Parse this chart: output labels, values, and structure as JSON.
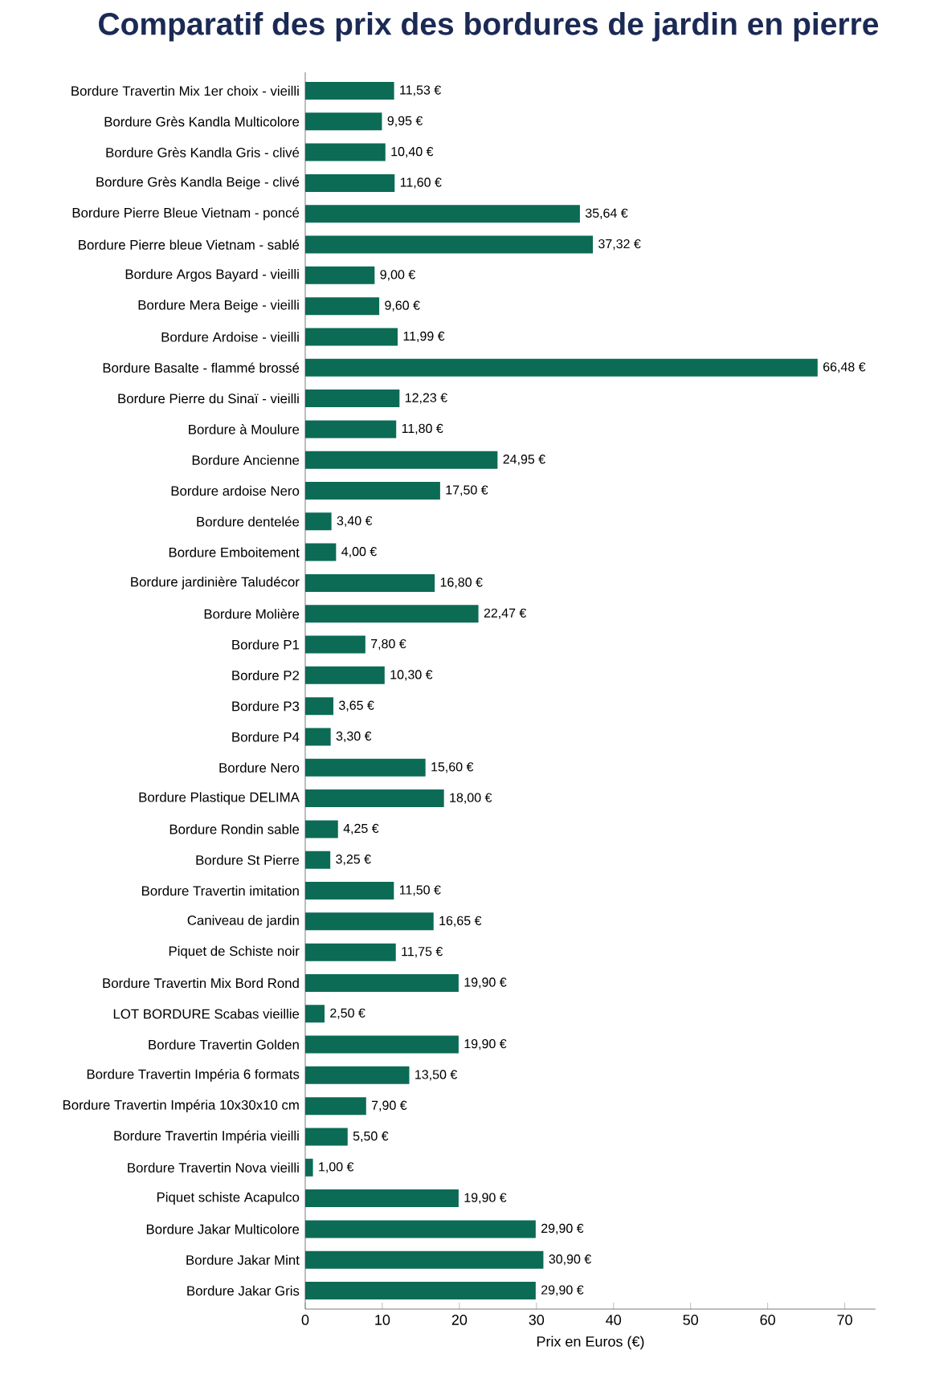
{
  "chart_data": {
    "type": "bar",
    "orientation": "horizontal",
    "title": "Comparatif des prix des bordures de jardin en pierre",
    "xlabel": "Prix en Euros (€)",
    "categories": [
      "Bordure Travertin Mix 1er choix - vieilli",
      "Bordure Grès Kandla Multicolore",
      "Bordure Grès Kandla Gris - clivé",
      "Bordure Grès Kandla Beige - clivé",
      "Bordure Pierre Bleue Vietnam - poncé",
      "Bordure Pierre bleue Vietnam - sablé",
      "Bordure Argos Bayard - vieilli",
      "Bordure Mera Beige - vieilli",
      "Bordure Ardoise - vieilli",
      "Bordure Basalte - flammé brossé",
      "Bordure Pierre du Sinaï - vieilli",
      "Bordure à Moulure",
      "Bordure Ancienne",
      "Bordure ardoise Nero",
      "Bordure dentelée",
      "Bordure Emboitement",
      "Bordure jardinière Taludécor",
      "Bordure Molière",
      "Bordure P1",
      "Bordure P2",
      "Bordure P3",
      "Bordure P4",
      "Bordure Nero",
      "Bordure Plastique DELIMA",
      "Bordure Rondin sable",
      "Bordure St Pierre",
      "Bordure Travertin imitation",
      "Caniveau de jardin",
      "Piquet de Schiste noir",
      "Bordure Travertin Mix Bord Rond",
      "LOT BORDURE Scabas vieillie",
      "Bordure Travertin Golden",
      "Bordure Travertin Impéria 6 formats",
      "Bordure Travertin Impéria 10x30x10 cm",
      "Bordure Travertin Impéria vieilli",
      "Bordure Travertin Nova vieilli",
      "Piquet schiste Acapulco",
      "Bordure Jakar Multicolore",
      "Bordure Jakar Mint",
      "Bordure Jakar Gris"
    ],
    "values": [
      11.53,
      9.95,
      10.4,
      11.6,
      35.64,
      37.32,
      9.0,
      9.6,
      11.99,
      66.48,
      12.23,
      11.8,
      24.95,
      17.5,
      3.4,
      4.0,
      16.8,
      22.47,
      7.8,
      10.3,
      3.65,
      3.3,
      15.6,
      18.0,
      4.25,
      3.25,
      11.5,
      16.65,
      11.75,
      19.9,
      2.5,
      19.9,
      13.5,
      7.9,
      5.5,
      1.0,
      19.9,
      29.9,
      30.9,
      29.9
    ],
    "value_labels": [
      "11,53 €",
      "9,95 €",
      "10,40 €",
      "11,60 €",
      "35,64 €",
      "37,32 €",
      "9,00 €",
      "9,60 €",
      "11,99 €",
      "66,48 €",
      "12,23 €",
      "11,80 €",
      "24,95 €",
      "17,50 €",
      "3,40 €",
      "4,00 €",
      "16,80 €",
      "22,47 €",
      "7,80 €",
      "10,30 €",
      "3,65 €",
      "3,30 €",
      "15,60 €",
      "18,00 €",
      "4,25 €",
      "3,25 €",
      "11,50 €",
      "16,65 €",
      "11,75 €",
      "19,90 €",
      "2,50 €",
      "19,90 €",
      "13,50 €",
      "7,90 €",
      "5,50 €",
      "1,00 €",
      "19,90 €",
      "29,90 €",
      "30,90 €",
      "29,90 €"
    ],
    "color": "#0b6b55",
    "xlim": [
      0,
      74
    ],
    "xticks": [
      0,
      10,
      20,
      30,
      40,
      50,
      60,
      70
    ],
    "grid": false
  }
}
